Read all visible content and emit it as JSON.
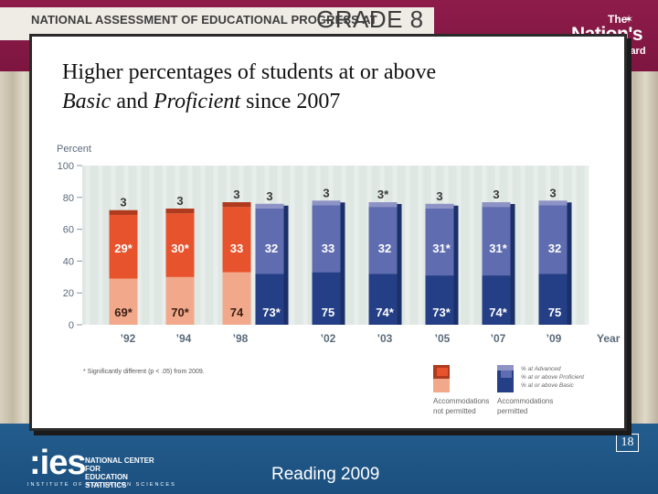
{
  "header": {
    "naep_text": "NATIONAL ASSESSMENT OF EDUCATIONAL PROGRESS AT",
    "grade_text": "GRADE 8",
    "logo_the": "The",
    "logo_nation": "Nation's",
    "logo_report_card": "Report Card"
  },
  "footer": {
    "ies": ":ies",
    "nces_line1": "NATIONAL CENTER FOR",
    "nces_line2": "EDUCATION STATISTICS",
    "ies_subtitle": "INSTITUTE OF EDUCATION SCIENCES",
    "report_title": "Reading 2009",
    "page_number": "18"
  },
  "colors": {
    "advanced_not_permitted": "#b03a1e",
    "proficient_not_permitted": "#e7532c",
    "basic_not_permitted": "#f2a98b",
    "advanced_permitted": "#8e93c6",
    "proficient_permitted": "#5f6cb0",
    "basic_permitted": "#253f86",
    "plot_background": "#dfe7e3"
  },
  "chart_data": {
    "type": "bar",
    "title_line1": "Higher percentages of students at or above",
    "title_line2_italic_1": "Basic",
    "title_line2_mid": " and ",
    "title_line2_italic_2": "Proficient",
    "title_line2_end": " since 2007",
    "ylabel": "Percent",
    "xlabel": "Year",
    "ylim": [
      0,
      100
    ],
    "yticks": [
      "0",
      "20",
      "40",
      "60",
      "80",
      "100"
    ],
    "categories": [
      "'92",
      "'94",
      "'98",
      "'98",
      "'02",
      "'03",
      "'05",
      "'07",
      "'09"
    ],
    "category_labels": [
      "’92",
      "’94",
      "’98",
      "’02",
      "’03",
      "’05",
      "’07",
      "’09"
    ],
    "accommodations": [
      "not",
      "not",
      "not",
      "yes",
      "yes",
      "yes",
      "yes",
      "yes",
      "yes"
    ],
    "series": [
      {
        "name": "% at Advanced",
        "values": [
          3,
          3,
          3,
          3,
          3,
          3,
          3,
          3,
          3
        ],
        "labels": [
          "3",
          "3",
          "3",
          "3",
          "3",
          "3*",
          "3",
          "3",
          "3"
        ]
      },
      {
        "name": "% at or above Proficient",
        "values": [
          29,
          30,
          33,
          32,
          33,
          32,
          31,
          31,
          32
        ],
        "labels": [
          "29*",
          "30*",
          "33",
          "32",
          "33",
          "32",
          "31*",
          "31*",
          "32"
        ]
      },
      {
        "name": "% at or above Basic",
        "values": [
          69,
          70,
          74,
          73,
          75,
          74,
          73,
          74,
          75
        ],
        "labels": [
          "69*",
          "70*",
          "74",
          "73*",
          "75",
          "74*",
          "73*",
          "74*",
          "75"
        ]
      }
    ],
    "footnote": "* Significantly different (p < .05) from 2009.",
    "legend_items": [
      "% at Advanced",
      "% at or above Proficient",
      "% at or above Basic"
    ],
    "legend_group_not": "Accommodations not permitted",
    "legend_group_not_line1": "Accommodations",
    "legend_group_not_line2": "not permitted",
    "legend_group_yes_line1": "Accommodations",
    "legend_group_yes_line2": "permitted"
  }
}
